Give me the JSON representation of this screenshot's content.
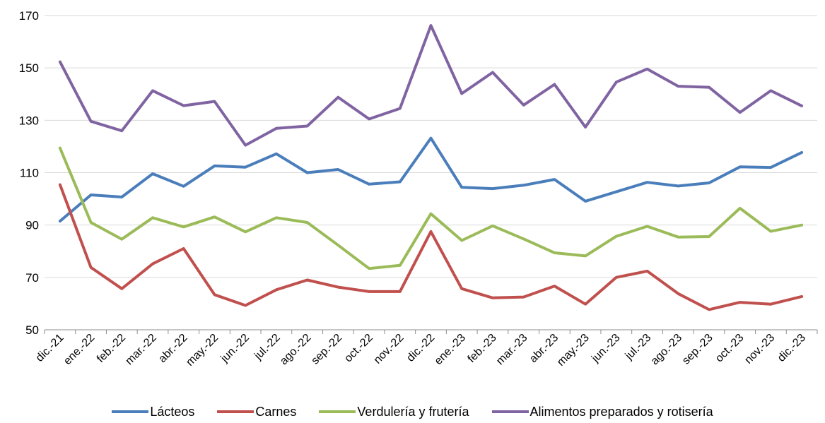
{
  "chart_data": {
    "type": "line",
    "title": "",
    "xlabel": "",
    "ylabel": "",
    "ylim": [
      50,
      170
    ],
    "yticks": [
      50,
      70,
      90,
      110,
      130,
      150,
      170
    ],
    "grid": "horizontal",
    "legend_position": "bottom",
    "categories": [
      "dic.-21",
      "ene.-22",
      "feb.-22",
      "mar.-22",
      "abr.-22",
      "may.-22",
      "jun.-22",
      "jul.-22",
      "ago.-22",
      "sep.-22",
      "oct.-22",
      "nov.-22",
      "dic.-22",
      "ene.-23",
      "feb.-23",
      "mar.-23",
      "abr.-23",
      "may.-23",
      "jun.-23",
      "jul.-23",
      "ago.-23",
      "sep.-23",
      "oct.-23",
      "nov.-23",
      "dic.-23"
    ],
    "series": [
      {
        "name": "Lácteos",
        "color": "#4a7ebb",
        "values": [
          91.5,
          101.5,
          100.7,
          109.6,
          104.8,
          112.6,
          112.1,
          117.2,
          110.0,
          111.2,
          105.6,
          106.5,
          123.2,
          104.4,
          103.9,
          105.2,
          107.4,
          99.1,
          102.7,
          106.3,
          104.9,
          106.1,
          112.2,
          112.0,
          117.7
        ]
      },
      {
        "name": "Carnes",
        "color": "#c0504d",
        "values": [
          105.4,
          73.8,
          65.7,
          75.2,
          81.0,
          63.4,
          59.3,
          65.3,
          69.0,
          66.3,
          64.6,
          64.6,
          87.5,
          65.7,
          62.2,
          62.5,
          66.7,
          59.8,
          70.0,
          72.4,
          63.8,
          57.7,
          60.5,
          59.8,
          62.7
        ]
      },
      {
        "name": "Verdulería y frutería",
        "color": "#9bbb59",
        "values": [
          119.4,
          91.0,
          84.6,
          92.8,
          89.3,
          93.1,
          87.4,
          92.8,
          91.0,
          82.3,
          73.4,
          74.6,
          94.3,
          84.1,
          89.7,
          84.7,
          79.4,
          78.2,
          85.7,
          89.5,
          85.4,
          85.6,
          96.4,
          87.6,
          90.0
        ]
      },
      {
        "name": "Alimentos preparados y rotisería",
        "color": "#8064a2",
        "values": [
          152.3,
          129.6,
          126.0,
          141.3,
          135.6,
          137.2,
          120.5,
          126.9,
          127.8,
          138.8,
          130.5,
          134.5,
          166.2,
          140.2,
          148.3,
          135.8,
          143.7,
          127.4,
          144.6,
          149.6,
          143.0,
          142.6,
          133.0,
          141.3,
          135.5
        ]
      }
    ]
  }
}
